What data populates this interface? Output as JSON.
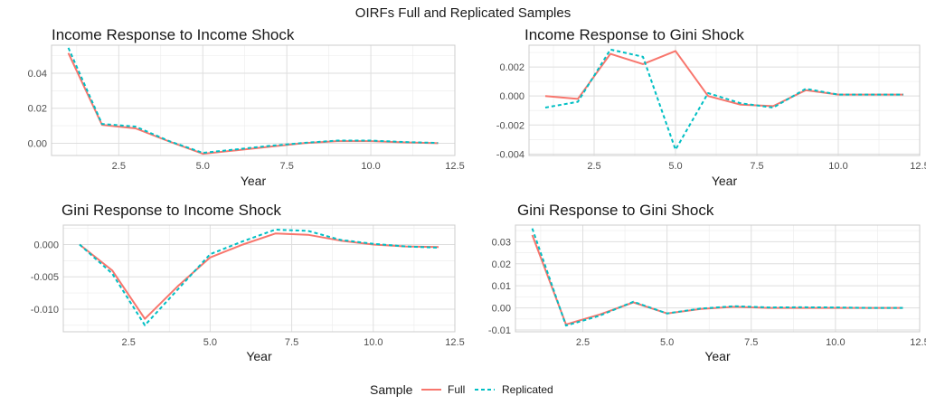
{
  "figure_title": "OIRFs Full and Replicated Samples",
  "legend": {
    "title": "Sample",
    "entries": [
      {
        "name": "Full",
        "color": "#F8766D",
        "style": "solid"
      },
      {
        "name": "Replicated",
        "color": "#00BFC4",
        "style": "dashed"
      }
    ]
  },
  "chart_data": [
    {
      "type": "line",
      "title": "Income Response to Income Shock",
      "xlabel": "Year",
      "ylabel": "",
      "xlim": [
        0.5,
        12.5
      ],
      "ylim": [
        -0.007,
        0.056
      ],
      "x_ticks": [
        2.5,
        5.0,
        7.5,
        10.0,
        12.5
      ],
      "x_tick_labels": [
        "2.5",
        "5.0",
        "7.5",
        "10.0",
        "12.5"
      ],
      "y_ticks": [
        0.0,
        0.02,
        0.04
      ],
      "y_tick_labels": [
        "0.00",
        "0.02",
        "0.04"
      ],
      "grid": true,
      "x": [
        1,
        2,
        3,
        4,
        5,
        6,
        7,
        8,
        9,
        10,
        11,
        12
      ],
      "series": [
        {
          "name": "Full",
          "values": [
            0.0515,
            0.0105,
            0.0085,
            0.001,
            -0.006,
            -0.004,
            -0.002,
            0.0,
            0.0012,
            0.0012,
            0.0005,
            0.0
          ]
        },
        {
          "name": "Replicated",
          "values": [
            0.0545,
            0.011,
            0.0095,
            0.0012,
            -0.0055,
            -0.0035,
            -0.0015,
            0.0002,
            0.0015,
            0.0015,
            0.0007,
            0.0002
          ]
        }
      ]
    },
    {
      "type": "line",
      "title": "Income Response to Gini Shock",
      "xlabel": "Year",
      "ylabel": "",
      "xlim": [
        0.5,
        12.5
      ],
      "ylim": [
        -0.0041,
        0.0035
      ],
      "x_ticks": [
        2.5,
        5.0,
        7.5,
        10.0,
        12.5
      ],
      "x_tick_labels": [
        "2.5",
        "5.0",
        "7.5",
        "10.0",
        "12.5"
      ],
      "y_ticks": [
        -0.004,
        -0.002,
        0.0,
        0.002
      ],
      "y_tick_labels": [
        "-0.004",
        "-0.002",
        "0.000",
        "0.002"
      ],
      "grid": true,
      "x": [
        1,
        2,
        3,
        4,
        5,
        6,
        7,
        8,
        9,
        10,
        11,
        12
      ],
      "series": [
        {
          "name": "Full",
          "values": [
            0.0,
            -0.0002,
            0.0029,
            0.0022,
            0.0031,
            0.0,
            -0.0006,
            -0.0007,
            0.0004,
            0.0001,
            0.0001,
            0.0001
          ]
        },
        {
          "name": "Replicated",
          "values": [
            -0.0008,
            -0.0004,
            0.0032,
            0.0027,
            -0.0037,
            0.0002,
            -0.0005,
            -0.0008,
            0.0005,
            0.0001,
            0.0001,
            0.0001
          ]
        }
      ]
    },
    {
      "type": "line",
      "title": "Gini Response to Income Shock",
      "xlabel": "Year",
      "ylabel": "",
      "xlim": [
        0.5,
        12.5
      ],
      "ylim": [
        -0.0135,
        0.003
      ],
      "x_ticks": [
        2.5,
        5.0,
        7.5,
        10.0,
        12.5
      ],
      "x_tick_labels": [
        "2.5",
        "5.0",
        "7.5",
        "10.0",
        "12.5"
      ],
      "y_ticks": [
        -0.01,
        -0.005,
        0.0
      ],
      "y_tick_labels": [
        "-0.010",
        "-0.005",
        "0.000"
      ],
      "grid": true,
      "x": [
        1,
        2,
        3,
        4,
        5,
        6,
        7,
        8,
        9,
        10,
        11,
        12
      ],
      "series": [
        {
          "name": "Full",
          "values": [
            0.0,
            -0.004,
            -0.0115,
            -0.0065,
            -0.002,
            0.0,
            0.0017,
            0.0015,
            0.0006,
            0.0,
            -0.0003,
            -0.0004
          ]
        },
        {
          "name": "Replicated",
          "values": [
            0.0,
            -0.0045,
            -0.0125,
            -0.007,
            -0.0015,
            0.0005,
            0.0023,
            0.0021,
            0.0007,
            0.0001,
            -0.0003,
            -0.0005
          ]
        }
      ]
    },
    {
      "type": "line",
      "title": "Gini Response to Gini Shock",
      "xlabel": "Year",
      "ylabel": "",
      "xlim": [
        0.5,
        12.5
      ],
      "ylim": [
        -0.0108,
        0.0375
      ],
      "x_ticks": [
        2.5,
        5.0,
        7.5,
        10.0,
        12.5
      ],
      "x_tick_labels": [
        "2.5",
        "5.0",
        "7.5",
        "10.0",
        "12.5"
      ],
      "y_ticks": [
        -0.01,
        0.0,
        0.01,
        0.02,
        0.03
      ],
      "y_tick_labels": [
        "-0.01",
        "0.00",
        "0.01",
        "0.02",
        "0.03"
      ],
      "grid": true,
      "x": [
        1,
        2,
        3,
        4,
        5,
        6,
        7,
        8,
        9,
        10,
        11,
        12
      ],
      "series": [
        {
          "name": "Full",
          "values": [
            0.033,
            -0.0075,
            -0.003,
            0.0025,
            -0.0025,
            -0.0005,
            0.0005,
            0.0,
            0.0,
            0.0,
            0.0,
            0.0
          ]
        },
        {
          "name": "Replicated",
          "values": [
            0.036,
            -0.008,
            -0.0035,
            0.0028,
            -0.0025,
            -0.0003,
            0.0008,
            0.0002,
            0.0003,
            0.0002,
            0.0,
            0.0
          ]
        }
      ]
    }
  ]
}
